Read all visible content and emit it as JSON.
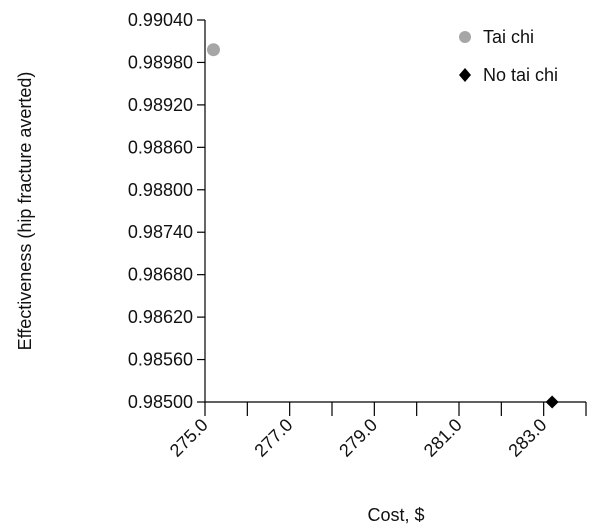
{
  "chart_data": {
    "type": "scatter",
    "title": "",
    "xlabel": "Cost, $",
    "ylabel": "Effectiveness  (hip fracture averted)",
    "xlim": [
      275.0,
      284.0
    ],
    "ylim": [
      0.985,
      0.9904
    ],
    "x_tick_labels": [
      "275.0",
      "277.0",
      "279.0",
      "281.0",
      "283.0"
    ],
    "y_tick_labels": [
      "0.98500",
      "0.98560",
      "0.98620",
      "0.98680",
      "0.98740",
      "0.98800",
      "0.98860",
      "0.98920",
      "0.98980",
      "0.99040"
    ],
    "grid": false,
    "legend_position": "top-right",
    "series": [
      {
        "name": "Tai chi",
        "marker": "circle",
        "color": "#a6a6a6",
        "x": 275.2,
        "y": 0.98998
      },
      {
        "name": "No tai chi",
        "marker": "diamond",
        "color": "#000000",
        "x": 283.2,
        "y": 0.985
      }
    ]
  }
}
